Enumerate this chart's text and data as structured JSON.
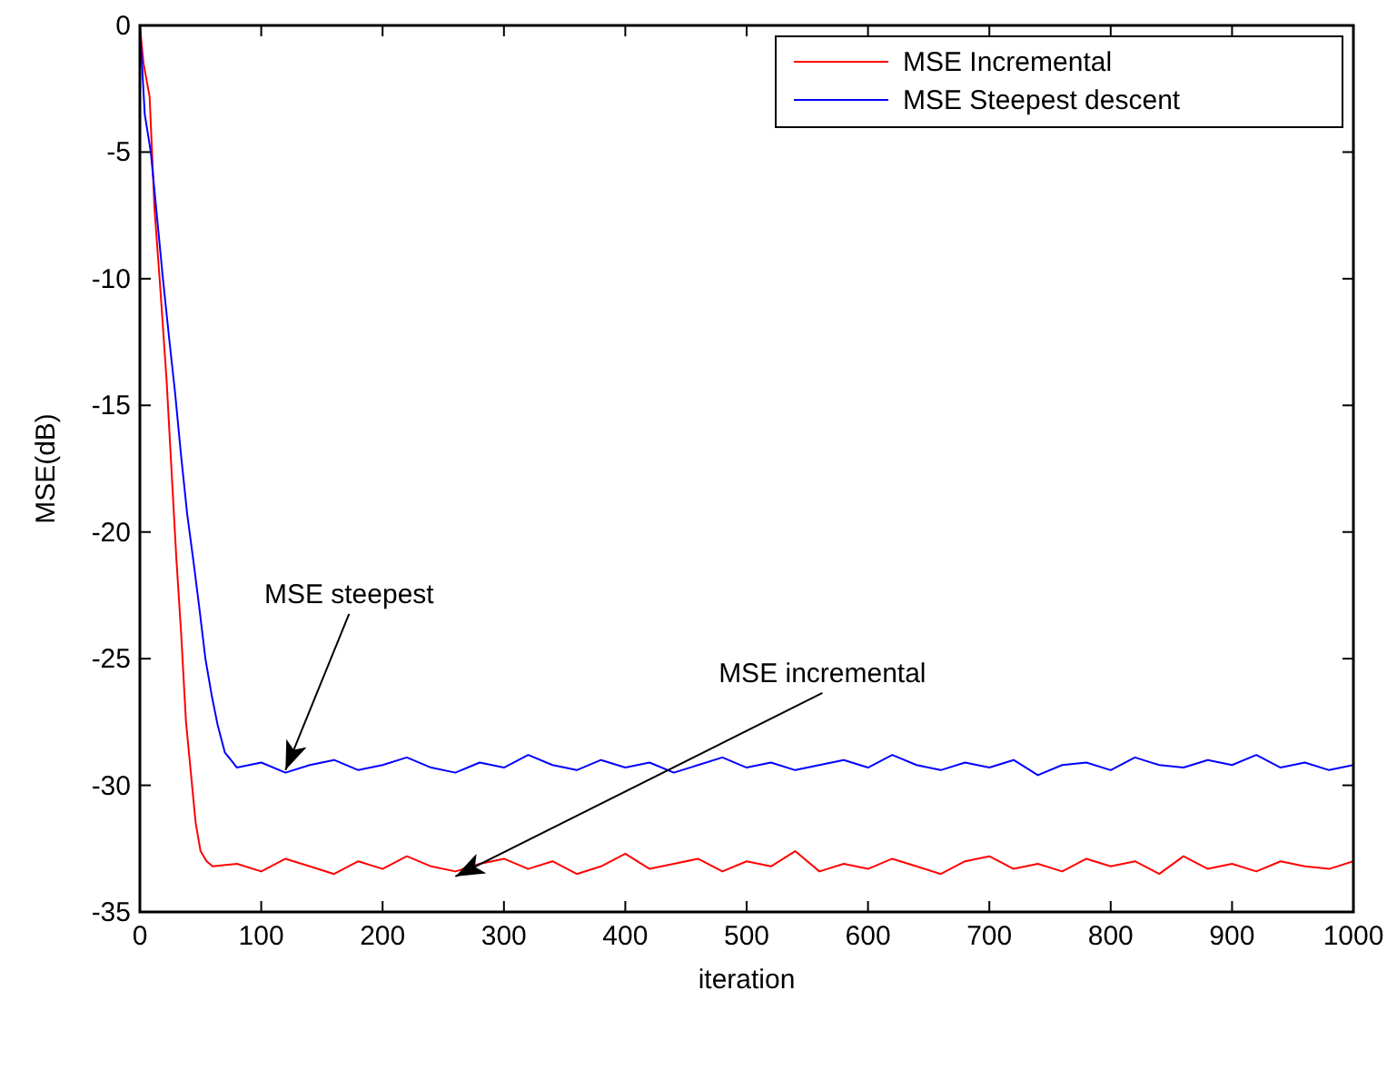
{
  "chart_data": {
    "type": "line",
    "xlabel": "iteration",
    "ylabel": "MSE(dB)",
    "xlim": [
      0,
      1000
    ],
    "xticks": [
      0,
      100,
      200,
      300,
      400,
      500,
      600,
      700,
      800,
      900,
      1000
    ],
    "ylim": [
      -35,
      0
    ],
    "yticks": [
      -35,
      -30,
      -25,
      -20,
      -15,
      -10,
      -5,
      0
    ],
    "grid": false,
    "legend": "top right",
    "marker": "none",
    "line_style": "solid",
    "series": [
      {
        "name": "MSE Incremental",
        "color": "#ff0000",
        "x": [
          0,
          3,
          8,
          12,
          17,
          22,
          26,
          30,
          34,
          38,
          42,
          46,
          50,
          55,
          60,
          80,
          100,
          120,
          140,
          160,
          180,
          200,
          220,
          240,
          260,
          280,
          300,
          320,
          340,
          360,
          380,
          400,
          420,
          440,
          460,
          480,
          500,
          520,
          540,
          560,
          580,
          600,
          620,
          640,
          660,
          680,
          700,
          720,
          740,
          760,
          780,
          800,
          820,
          840,
          860,
          880,
          900,
          920,
          940,
          960,
          980,
          1000
        ],
        "values": [
          0,
          -1.5,
          -2.8,
          -7.2,
          -10.5,
          -14,
          -17.5,
          -21,
          -24,
          -27.5,
          -29.5,
          -31.5,
          -32.6,
          -33.0,
          -33.2,
          -33.1,
          -33.4,
          -32.9,
          -33.2,
          -33.5,
          -33.0,
          -33.3,
          -32.8,
          -33.2,
          -33.4,
          -33.1,
          -32.9,
          -33.3,
          -33.0,
          -33.5,
          -33.2,
          -32.7,
          -33.3,
          -33.1,
          -32.9,
          -33.4,
          -33.0,
          -33.2,
          -32.6,
          -33.4,
          -33.1,
          -33.3,
          -32.9,
          -33.2,
          -33.5,
          -33.0,
          -32.8,
          -33.3,
          -33.1,
          -33.4,
          -32.9,
          -33.2,
          -33.0,
          -33.5,
          -32.8,
          -33.3,
          -33.1,
          -33.4,
          -33.0,
          -33.2,
          -33.3,
          -33.0
        ]
      },
      {
        "name": "MSE Steepest descent",
        "color": "#0000ff",
        "x": [
          0,
          4,
          9,
          14,
          19,
          24,
          29,
          34,
          39,
          44,
          49,
          54,
          59,
          64,
          70,
          80,
          100,
          120,
          140,
          160,
          180,
          200,
          220,
          240,
          260,
          280,
          300,
          320,
          340,
          360,
          380,
          400,
          420,
          440,
          460,
          480,
          500,
          520,
          540,
          560,
          580,
          600,
          620,
          640,
          660,
          680,
          700,
          720,
          740,
          760,
          780,
          800,
          820,
          840,
          860,
          880,
          900,
          920,
          940,
          960,
          980,
          1000
        ],
        "values": [
          0,
          -3.5,
          -5,
          -7.5,
          -10,
          -12.3,
          -14.5,
          -17,
          -19.3,
          -21.1,
          -23,
          -25,
          -26.4,
          -27.6,
          -28.7,
          -29.3,
          -29.1,
          -29.5,
          -29.2,
          -29.0,
          -29.4,
          -29.2,
          -28.9,
          -29.3,
          -29.5,
          -29.1,
          -29.3,
          -28.8,
          -29.2,
          -29.4,
          -29.0,
          -29.3,
          -29.1,
          -29.5,
          -29.2,
          -28.9,
          -29.3,
          -29.1,
          -29.4,
          -29.2,
          -29.0,
          -29.3,
          -28.8,
          -29.2,
          -29.4,
          -29.1,
          -29.3,
          -29.0,
          -29.6,
          -29.2,
          -29.1,
          -29.4,
          -28.9,
          -29.2,
          -29.3,
          -29.0,
          -29.2,
          -28.8,
          -29.3,
          -29.1,
          -29.4,
          -29.2
        ]
      }
    ],
    "annotations": [
      {
        "text": "MSE steepest",
        "x": 120,
        "y": -29.4
      },
      {
        "text": "MSE incremental",
        "x": 260,
        "y": -33.6
      }
    ]
  }
}
